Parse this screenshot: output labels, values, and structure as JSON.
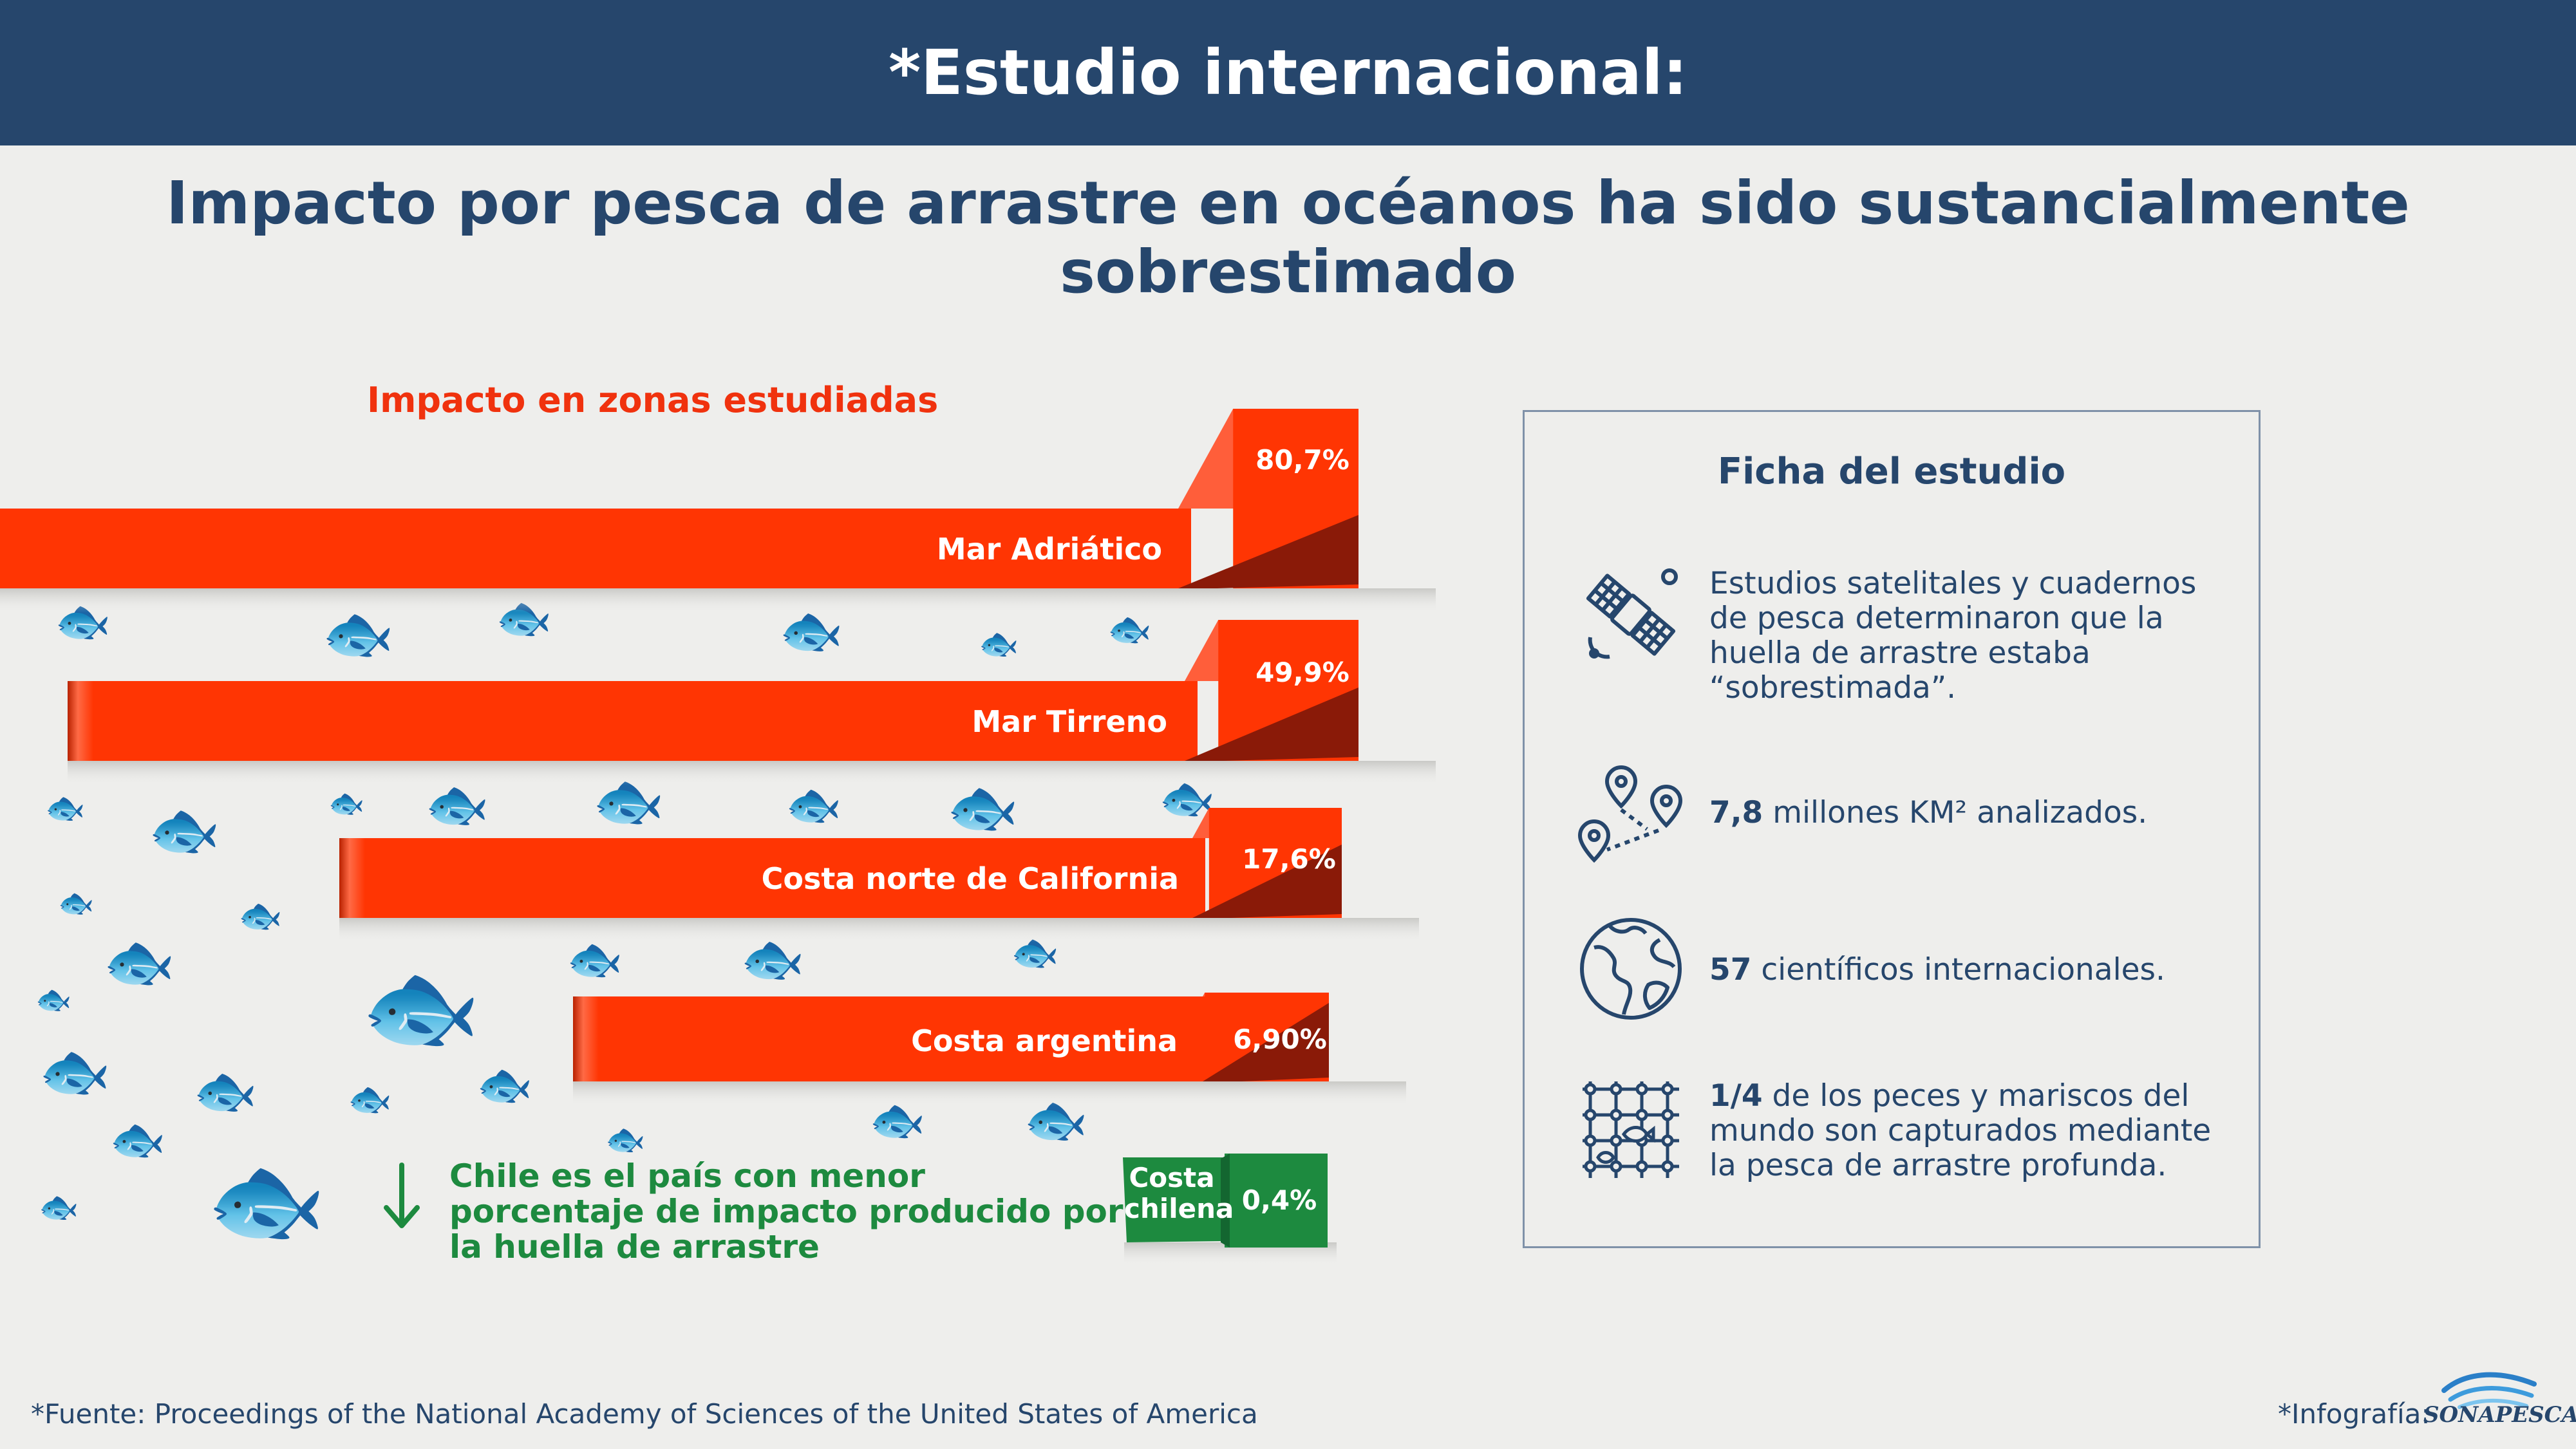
{
  "header": {
    "title": "*Estudio internacional:"
  },
  "subtitle": "Impacto por pesca de arrastre en océanos ha sido sustancialmente sobrestimado",
  "impact": {
    "section_title": "Impacto en zonas estudiadas",
    "zones": [
      {
        "label": "Mar Adriático",
        "value_text": "80,7%",
        "value": 80.7
      },
      {
        "label": "Mar Tirreno",
        "value_text": "49,9%",
        "value": 49.9
      },
      {
        "label": "Costa norte de California",
        "value_text": "17,6%",
        "value": 17.6
      },
      {
        "label": "Costa argentina",
        "value_text": "6,90%",
        "value": 6.9
      }
    ],
    "chile": {
      "note": "Chile es el país con menor porcentaje de impacto producido por la huella de arrastre",
      "label": "Costa chilena",
      "value_text": "0,4%",
      "value": 0.4
    },
    "colors": {
      "bar": "#ff3503",
      "bar_top": "#ff5e3a",
      "bar_shadow": "#8a1a08",
      "chile": "#1d8a3f"
    }
  },
  "study": {
    "title": "Ficha del estudio",
    "items": [
      {
        "icon": "satellite-icon",
        "text": "Estudios satelitales y cuadernos de pesca determinaron que la huella de arrastre estaba “sobrestimada”."
      },
      {
        "icon": "map-pins-icon",
        "bold": "7,8",
        "text": " millones KM² analizados."
      },
      {
        "icon": "globe-icon",
        "bold": "57",
        "text": " científicos internacionales."
      },
      {
        "icon": "fishing-net-icon",
        "bold": "1/4",
        "text": " de los peces y mariscos del mundo son capturados mediante la pesca de arrastre profunda."
      }
    ]
  },
  "footer": {
    "source": "*Fuente: Proceedings of the National Academy of Sciences of the United States of America",
    "credit": "*Infografía:",
    "logo_text": "SONAPESCA"
  }
}
